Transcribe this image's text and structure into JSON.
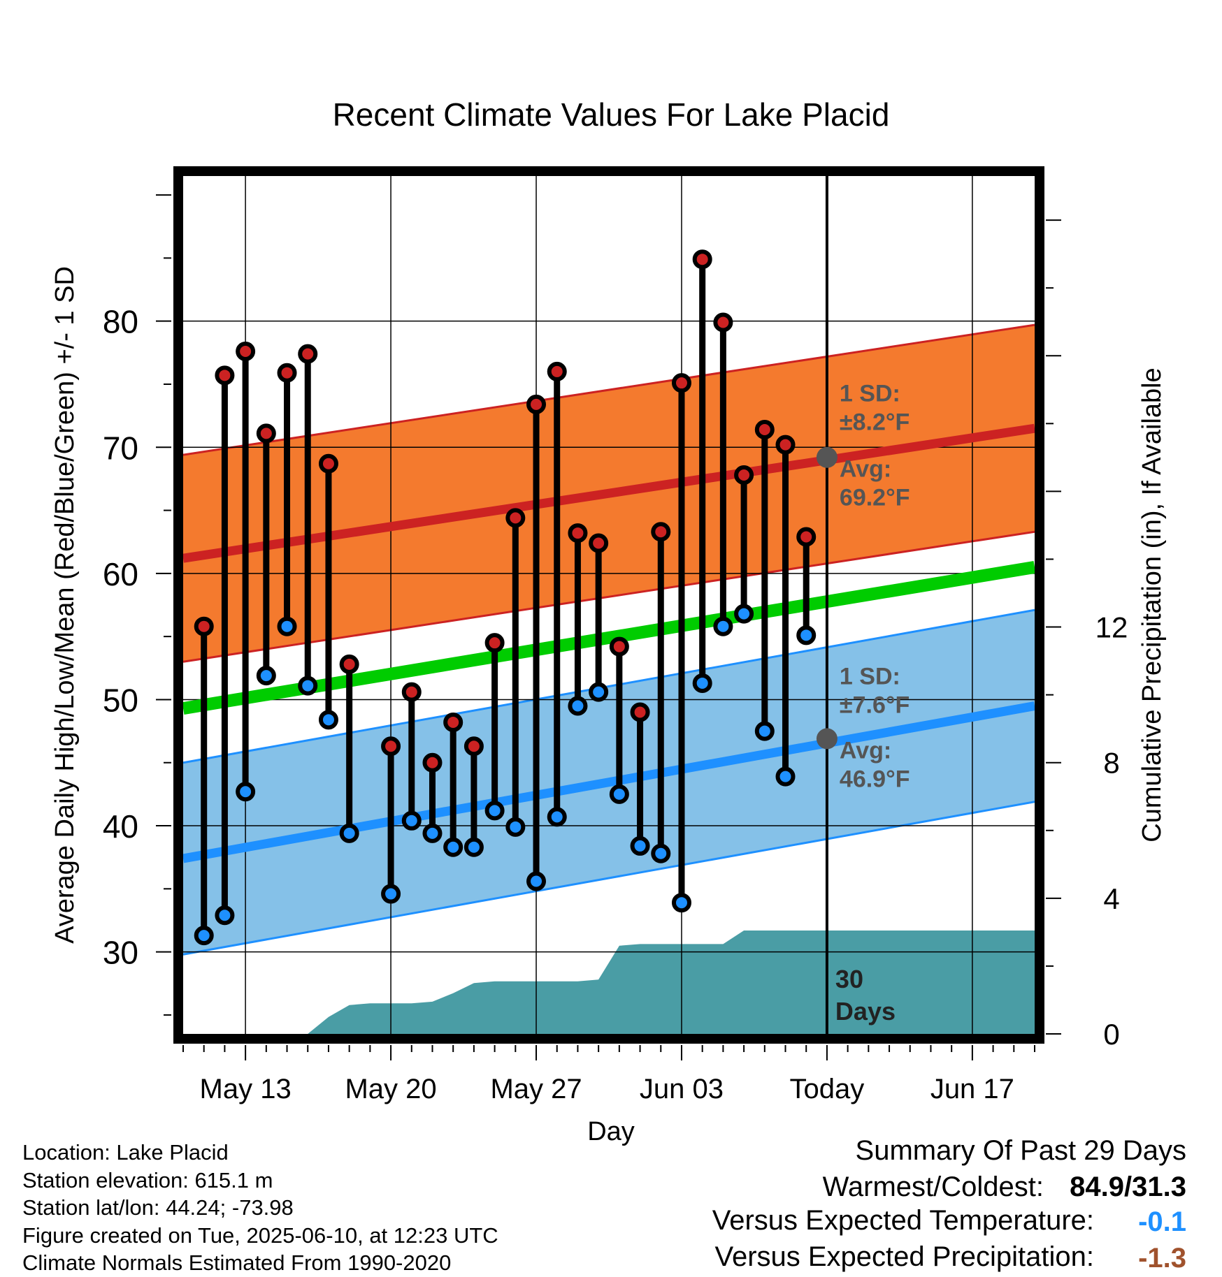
{
  "chart_data": {
    "type": "line",
    "title": "Recent Climate Values For Lake Placid",
    "xlabel": "Day",
    "ylabel_left": "Average Daily High/Low/Mean (Red/Blue/Green) +/- 1 SD",
    "ylabel_right": "Cumulative Precipitation (in), If Available",
    "y_left_range": [
      23.5,
      91.5
    ],
    "y_left_ticks": [
      30,
      40,
      50,
      60,
      70,
      80
    ],
    "y_right_range": [
      0,
      25.3
    ],
    "y_right_ticks": [
      0,
      4,
      8,
      12
    ],
    "x_range": [
      "2025-05-10",
      "2025-06-20"
    ],
    "x_ticks": [
      {
        "date": "2025-05-13",
        "label": "May 13"
      },
      {
        "date": "2025-05-20",
        "label": "May 20"
      },
      {
        "date": "2025-05-27",
        "label": "May 27"
      },
      {
        "date": "2025-06-03",
        "label": "Jun 03"
      },
      {
        "date": "2025-06-10",
        "label": "Today"
      },
      {
        "date": "2025-06-17",
        "label": "Jun 17"
      }
    ],
    "grid": true,
    "today": "2025-06-10",
    "today_label": "30\nDays",
    "normals": {
      "high_mean": {
        "start": 61.2,
        "end": 71.5
      },
      "high_sd": 8.2,
      "low_mean": {
        "start": 37.4,
        "end": 49.5
      },
      "low_sd": 7.6,
      "mean": {
        "start": 49.3,
        "end": 60.5
      }
    },
    "high_annotation": {
      "sd": "1 SD:",
      "sd_value": "±8.2°F",
      "avg": "Avg:",
      "avg_value": "69.2°F",
      "marker_value": 69.2
    },
    "low_annotation": {
      "sd": "1 SD:",
      "sd_value": "±7.6°F",
      "avg": "Avg:",
      "avg_value": "46.9°F",
      "marker_value": 46.9
    },
    "daily": [
      {
        "date": "2025-05-11",
        "high": 55.8,
        "low": 31.3
      },
      {
        "date": "2025-05-12",
        "high": 75.7,
        "low": 32.9
      },
      {
        "date": "2025-05-13",
        "high": 77.6,
        "low": 42.7
      },
      {
        "date": "2025-05-14",
        "high": 71.1,
        "low": 51.9
      },
      {
        "date": "2025-05-15",
        "high": 75.9,
        "low": 55.8
      },
      {
        "date": "2025-05-16",
        "high": 77.4,
        "low": 51.1
      },
      {
        "date": "2025-05-17",
        "high": 68.7,
        "low": 48.4
      },
      {
        "date": "2025-05-18",
        "high": 52.8,
        "low": 39.4
      },
      {
        "date": "2025-05-20",
        "high": 46.3,
        "low": 34.6
      },
      {
        "date": "2025-05-21",
        "high": 50.6,
        "low": 40.4
      },
      {
        "date": "2025-05-22",
        "high": 45.0,
        "low": 39.4
      },
      {
        "date": "2025-05-23",
        "high": 48.2,
        "low": 38.3
      },
      {
        "date": "2025-05-24",
        "high": 46.3,
        "low": 38.3
      },
      {
        "date": "2025-05-25",
        "high": 54.5,
        "low": 41.2
      },
      {
        "date": "2025-05-26",
        "high": 64.4,
        "low": 39.9
      },
      {
        "date": "2025-05-27",
        "high": 73.4,
        "low": 35.6
      },
      {
        "date": "2025-05-28",
        "high": 76.0,
        "low": 40.7
      },
      {
        "date": "2025-05-29",
        "high": 63.2,
        "low": 49.5
      },
      {
        "date": "2025-05-30",
        "high": 62.4,
        "low": 50.6
      },
      {
        "date": "2025-05-31",
        "high": 54.2,
        "low": 42.5
      },
      {
        "date": "2025-06-01",
        "high": 49.0,
        "low": 38.4
      },
      {
        "date": "2025-06-02",
        "high": 63.3,
        "low": 37.8
      },
      {
        "date": "2025-06-03",
        "high": 75.1,
        "low": 33.9
      },
      {
        "date": "2025-06-04",
        "high": 84.9,
        "low": 51.3
      },
      {
        "date": "2025-06-05",
        "high": 79.9,
        "low": 55.8
      },
      {
        "date": "2025-06-06",
        "high": 67.8,
        "low": 56.8
      },
      {
        "date": "2025-06-07",
        "high": 71.4,
        "low": 47.5
      },
      {
        "date": "2025-06-08",
        "high": 70.2,
        "low": 43.9
      },
      {
        "date": "2025-06-09",
        "high": 62.9,
        "low": 55.1
      }
    ],
    "precip_cumulative": [
      {
        "date": "2025-05-16",
        "value": 0
      },
      {
        "date": "2025-05-17",
        "value": 0.5
      },
      {
        "date": "2025-05-18",
        "value": 0.85
      },
      {
        "date": "2025-05-19",
        "value": 0.9
      },
      {
        "date": "2025-05-21",
        "value": 0.9
      },
      {
        "date": "2025-05-22",
        "value": 0.95
      },
      {
        "date": "2025-05-23",
        "value": 1.2
      },
      {
        "date": "2025-05-24",
        "value": 1.5
      },
      {
        "date": "2025-05-25",
        "value": 1.55
      },
      {
        "date": "2025-05-29",
        "value": 1.55
      },
      {
        "date": "2025-05-30",
        "value": 1.6
      },
      {
        "date": "2025-05-31",
        "value": 2.6
      },
      {
        "date": "2025-06-01",
        "value": 2.65
      },
      {
        "date": "2025-06-04",
        "value": 2.65
      },
      {
        "date": "2025-06-05",
        "value": 2.65
      },
      {
        "date": "2025-06-06",
        "value": 3.05
      },
      {
        "date": "2025-06-20",
        "value": 3.05
      }
    ]
  },
  "info": {
    "location": "Location: Lake Placid",
    "elevation": "Station elevation: 615.1 m",
    "latlon": "Station lat/lon: 44.24; -73.98",
    "created": "Figure created on Tue, 2025-06-10, at 12:23 UTC",
    "normals": "Climate Normals Estimated From 1990-2020"
  },
  "summary": {
    "title": "Summary Of Past 29 Days",
    "warm_cold_label": "Warmest/Coldest:",
    "warm_cold_value": "84.9/31.3",
    "temp_label": "Versus Expected Temperature:",
    "temp_value": "-0.1",
    "precip_label": "Versus Expected Precipitation:",
    "precip_value": "-1.3"
  },
  "colors": {
    "high": "#cc2222",
    "high_band": "#f47a2e",
    "low": "#1e90ff",
    "low_band": "#85c1e8",
    "mean": "#00cc00",
    "precip": "#4a9da5",
    "annotation": "#555555",
    "temp_delta": "#1e90ff",
    "precip_delta": "#a0522d"
  }
}
